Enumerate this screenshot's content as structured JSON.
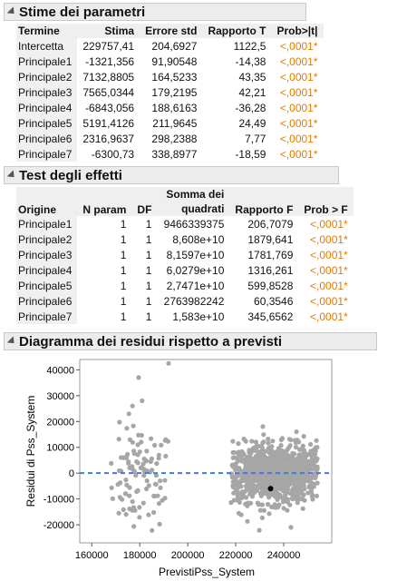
{
  "params": {
    "title": "Stime dei parametri",
    "headers": [
      "Termine",
      "Stima",
      "Errore std",
      "Rapporto T",
      "Prob>|t|"
    ],
    "rows": [
      [
        "Intercetta",
        "229757,41",
        "204,6927",
        "1122,5",
        "<,0001*"
      ],
      [
        "Principale1",
        "-1321,356",
        "91,90548",
        "-14,38",
        "<,0001*"
      ],
      [
        "Principale2",
        "7132,8805",
        "164,5233",
        "43,35",
        "<,0001*"
      ],
      [
        "Principale3",
        "7565,0344",
        "179,2195",
        "42,21",
        "<,0001*"
      ],
      [
        "Principale4",
        "-6843,056",
        "188,6163",
        "-36,28",
        "<,0001*"
      ],
      [
        "Principale5",
        "5191,4126",
        "211,9645",
        "24,49",
        "<,0001*"
      ],
      [
        "Principale6",
        "2316,9637",
        "298,2388",
        "7,77",
        "<,0001*"
      ],
      [
        "Principale7",
        "-6300,73",
        "338,8977",
        "-18,59",
        "<,0001*"
      ]
    ]
  },
  "effects": {
    "title": "Test degli effetti",
    "headers": [
      "Origine",
      "N param",
      "DF",
      "Somma dei quadrati",
      "Rapporto F",
      "Prob > F"
    ],
    "rows": [
      [
        "Principale1",
        "1",
        "1",
        "9466339375",
        "206,7079",
        "<,0001*"
      ],
      [
        "Principale2",
        "1",
        "1",
        "8,608e+10",
        "1879,641",
        "<,0001*"
      ],
      [
        "Principale3",
        "1",
        "1",
        "8,1597e+10",
        "1781,769",
        "<,0001*"
      ],
      [
        "Principale4",
        "1",
        "1",
        "6,0279e+10",
        "1316,261",
        "<,0001*"
      ],
      [
        "Principale5",
        "1",
        "1",
        "2,7471e+10",
        "599,8528",
        "<,0001*"
      ],
      [
        "Principale6",
        "1",
        "1",
        "2763982242",
        "60,3546",
        "<,0001*"
      ],
      [
        "Principale7",
        "1",
        "1",
        "1,583e+10",
        "345,6562",
        "<,0001*"
      ]
    ]
  },
  "plot": {
    "title": "Diagramma dei residui rispetto a previsti",
    "chart_data": {
      "type": "scatter",
      "xlabel": "PrevistiPss_System",
      "ylabel": "Residui di Pss_System",
      "xlim": [
        155000,
        260000
      ],
      "ylim": [
        -27000,
        44000
      ],
      "x_ticks": [
        160000,
        180000,
        200000,
        220000,
        240000
      ],
      "y_ticks": [
        -20000,
        -10000,
        0,
        10000,
        20000,
        30000,
        40000
      ],
      "reference_line_y": 0,
      "reference_line_color": "#3a7fd5",
      "point_color": "#a6a6a6",
      "highlight_point": {
        "x": 234500,
        "y": -6000,
        "color": "#000000"
      },
      "clusters": [
        {
          "x_range": [
            168000,
            192000
          ],
          "y_center": -2000,
          "y_spread": 10000,
          "count": 110
        },
        {
          "x_range": [
            218000,
            254000
          ],
          "y_center": 0,
          "y_spread": 5500,
          "count": 1200
        }
      ],
      "outliers": [
        [
          192000,
          42500
        ],
        [
          179500,
          37000
        ],
        [
          181000,
          28000
        ],
        [
          177000,
          26000
        ],
        [
          243000,
          -21000
        ]
      ]
    }
  }
}
